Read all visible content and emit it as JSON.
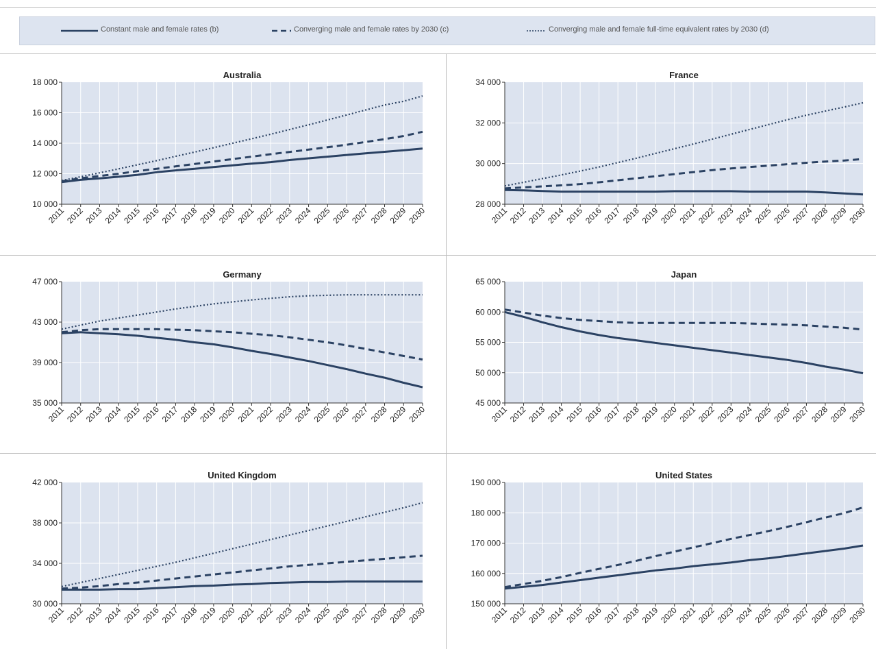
{
  "legend": [
    {
      "label": "Constant male and female rates (b)",
      "style": "solid"
    },
    {
      "label": "Converging male and female rates by 2030 (c)",
      "style": "dashed"
    },
    {
      "label": "Converging male and female full-time equivalent rates by 2030 (d)",
      "style": "dotted"
    }
  ],
  "colors": {
    "line": "#2b4263",
    "plot_bg": "#dce3ef",
    "grid": "#ffffff",
    "axis": "#333333",
    "rule": "#bdbdbd"
  },
  "chart_data": [
    {
      "type": "line",
      "title": "Australia",
      "x": [
        2011,
        2012,
        2013,
        2014,
        2015,
        2016,
        2017,
        2018,
        2019,
        2020,
        2021,
        2022,
        2023,
        2024,
        2025,
        2026,
        2027,
        2028,
        2029,
        2030
      ],
      "ylim": [
        10000,
        18000
      ],
      "yticks": [
        10000,
        12000,
        14000,
        16000,
        18000
      ],
      "yticklabels": [
        "10 000",
        "12 000",
        "14 000",
        "16 000",
        "18 000"
      ],
      "series": [
        {
          "style": "solid",
          "values": [
            11450,
            11600,
            11700,
            11800,
            11930,
            12100,
            12220,
            12330,
            12440,
            12550,
            12660,
            12760,
            12900,
            13010,
            13120,
            13230,
            13340,
            13440,
            13540,
            13650
          ]
        },
        {
          "style": "dashed",
          "values": [
            11500,
            11700,
            11850,
            12000,
            12170,
            12330,
            12480,
            12640,
            12800,
            12960,
            13120,
            13280,
            13430,
            13580,
            13740,
            13900,
            14080,
            14270,
            14470,
            14750
          ]
        },
        {
          "style": "dotted",
          "values": [
            11550,
            11800,
            12060,
            12320,
            12590,
            12860,
            13140,
            13420,
            13710,
            14000,
            14290,
            14590,
            14900,
            15210,
            15530,
            15850,
            16180,
            16510,
            16750,
            17100
          ]
        }
      ]
    },
    {
      "type": "line",
      "title": "France",
      "x": [
        2011,
        2012,
        2013,
        2014,
        2015,
        2016,
        2017,
        2018,
        2019,
        2020,
        2021,
        2022,
        2023,
        2024,
        2025,
        2026,
        2027,
        2028,
        2029,
        2030
      ],
      "ylim": [
        28000,
        34000
      ],
      "yticks": [
        28000,
        30000,
        32000,
        34000
      ],
      "yticklabels": [
        "28 000",
        "30 000",
        "32 000",
        "34 000"
      ],
      "series": [
        {
          "style": "solid",
          "values": [
            28700,
            28680,
            28650,
            28620,
            28620,
            28620,
            28620,
            28620,
            28620,
            28640,
            28640,
            28640,
            28640,
            28620,
            28620,
            28620,
            28620,
            28580,
            28530,
            28480
          ]
        },
        {
          "style": "dashed",
          "values": [
            28780,
            28830,
            28880,
            28930,
            28990,
            29080,
            29180,
            29280,
            29380,
            29480,
            29580,
            29680,
            29760,
            29830,
            29900,
            29970,
            30040,
            30100,
            30150,
            30220
          ]
        },
        {
          "style": "dotted",
          "values": [
            28900,
            29080,
            29260,
            29440,
            29630,
            29830,
            30050,
            30270,
            30500,
            30730,
            30960,
            31200,
            31440,
            31680,
            31920,
            32160,
            32380,
            32580,
            32780,
            32990
          ]
        }
      ]
    },
    {
      "type": "line",
      "title": "Germany",
      "x": [
        2011,
        2012,
        2013,
        2014,
        2015,
        2016,
        2017,
        2018,
        2019,
        2020,
        2021,
        2022,
        2023,
        2024,
        2025,
        2026,
        2027,
        2028,
        2029,
        2030
      ],
      "ylim": [
        35000,
        47000
      ],
      "yticks": [
        35000,
        39000,
        43000,
        47000
      ],
      "yticklabels": [
        "35 000",
        "39 000",
        "43 000",
        "47 000"
      ],
      "series": [
        {
          "style": "solid",
          "values": [
            41900,
            42000,
            41900,
            41800,
            41650,
            41450,
            41250,
            41000,
            40800,
            40500,
            40150,
            39850,
            39500,
            39150,
            38750,
            38350,
            37900,
            37500,
            37000,
            36550
          ]
        },
        {
          "style": "dashed",
          "values": [
            42000,
            42200,
            42300,
            42300,
            42300,
            42300,
            42250,
            42200,
            42100,
            42000,
            41850,
            41700,
            41500,
            41250,
            41000,
            40700,
            40350,
            40000,
            39650,
            39300
          ]
        },
        {
          "style": "dotted",
          "values": [
            42300,
            42700,
            43100,
            43400,
            43700,
            44000,
            44300,
            44550,
            44800,
            45000,
            45200,
            45350,
            45500,
            45600,
            45650,
            45700,
            45700,
            45700,
            45700,
            45700
          ]
        }
      ]
    },
    {
      "type": "line",
      "title": "Japan",
      "x": [
        2011,
        2012,
        2013,
        2014,
        2015,
        2016,
        2017,
        2018,
        2019,
        2020,
        2021,
        2022,
        2023,
        2024,
        2025,
        2026,
        2027,
        2028,
        2029,
        2030
      ],
      "ylim": [
        45000,
        65000
      ],
      "yticks": [
        45000,
        50000,
        55000,
        60000,
        65000
      ],
      "yticklabels": [
        "45 000",
        "50 000",
        "55 000",
        "60 000",
        "65 000"
      ],
      "series": [
        {
          "style": "solid",
          "values": [
            60000,
            59200,
            58300,
            57500,
            56800,
            56200,
            55700,
            55300,
            54900,
            54500,
            54100,
            53700,
            53300,
            52900,
            52500,
            52100,
            51600,
            51000,
            50500,
            49900
          ]
        },
        {
          "style": "dashed",
          "values": [
            60400,
            59900,
            59400,
            59000,
            58700,
            58500,
            58300,
            58200,
            58200,
            58200,
            58200,
            58200,
            58200,
            58100,
            58000,
            57900,
            57800,
            57600,
            57400,
            57100
          ]
        }
      ]
    },
    {
      "type": "line",
      "title": "United Kingdom",
      "x": [
        2011,
        2012,
        2013,
        2014,
        2015,
        2016,
        2017,
        2018,
        2019,
        2020,
        2021,
        2022,
        2023,
        2024,
        2025,
        2026,
        2027,
        2028,
        2029,
        2030
      ],
      "ylim": [
        30000,
        42000
      ],
      "yticks": [
        30000,
        34000,
        38000,
        42000
      ],
      "yticklabels": [
        "30 000",
        "34 000",
        "38 000",
        "42 000"
      ],
      "series": [
        {
          "style": "solid",
          "values": [
            31400,
            31400,
            31400,
            31450,
            31450,
            31550,
            31650,
            31750,
            31800,
            31900,
            31950,
            32050,
            32100,
            32150,
            32150,
            32200,
            32200,
            32200,
            32200,
            32200
          ]
        },
        {
          "style": "dashed",
          "values": [
            31500,
            31600,
            31750,
            31950,
            32100,
            32300,
            32500,
            32700,
            32900,
            33100,
            33300,
            33500,
            33700,
            33850,
            34000,
            34150,
            34300,
            34450,
            34600,
            34750
          ]
        },
        {
          "style": "dotted",
          "values": [
            31700,
            32100,
            32500,
            32900,
            33300,
            33700,
            34100,
            34550,
            35000,
            35450,
            35900,
            36350,
            36800,
            37250,
            37700,
            38150,
            38600,
            39050,
            39500,
            40000
          ]
        }
      ]
    },
    {
      "type": "line",
      "title": "United States",
      "x": [
        2011,
        2012,
        2013,
        2014,
        2015,
        2016,
        2017,
        2018,
        2019,
        2020,
        2021,
        2022,
        2023,
        2024,
        2025,
        2026,
        2027,
        2028,
        2029,
        2030
      ],
      "ylim": [
        150000,
        190000
      ],
      "yticks": [
        150000,
        160000,
        170000,
        180000,
        190000
      ],
      "yticklabels": [
        "150 000",
        "160 000",
        "170 000",
        "180 000",
        "190 000"
      ],
      "series": [
        {
          "style": "solid",
          "values": [
            155000,
            155600,
            156200,
            157000,
            157800,
            158600,
            159400,
            160200,
            161000,
            161600,
            162400,
            163000,
            163600,
            164400,
            165000,
            165800,
            166600,
            167400,
            168200,
            169200
          ]
        },
        {
          "style": "dashed",
          "values": [
            155500,
            156500,
            157600,
            158800,
            160200,
            161500,
            162800,
            164200,
            165700,
            167200,
            168600,
            170000,
            171400,
            172700,
            174000,
            175400,
            176900,
            178400,
            179900,
            181800
          ]
        }
      ]
    }
  ]
}
